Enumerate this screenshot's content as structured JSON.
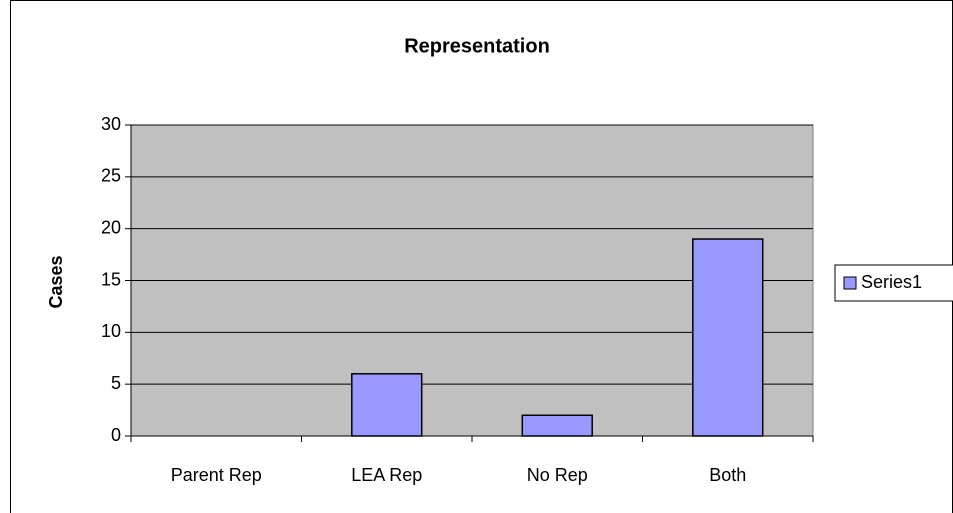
{
  "chart_data": {
    "type": "bar",
    "title": "Representation",
    "y_label": "Cases",
    "categories": [
      "Parent Rep",
      "LEA Rep",
      "No Rep",
      "Both"
    ],
    "series": [
      {
        "name": "Series1",
        "color": "#9999ff",
        "values": [
          0,
          6,
          2,
          19
        ]
      }
    ],
    "ylim": [
      0,
      30
    ],
    "yticks": [
      0,
      5,
      10,
      15,
      20,
      25,
      30
    ],
    "grid": true,
    "legend": "right"
  }
}
